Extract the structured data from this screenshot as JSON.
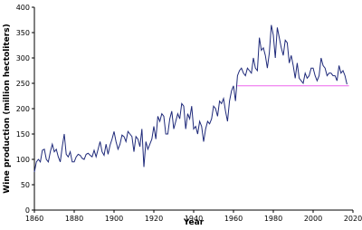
{
  "chart_data": {
    "type": "line",
    "xlabel": "Year",
    "ylabel": "Wine production (million hectoliters)",
    "x": [
      1860,
      1861,
      1862,
      1863,
      1864,
      1865,
      1866,
      1867,
      1868,
      1869,
      1870,
      1871,
      1872,
      1873,
      1874,
      1875,
      1876,
      1877,
      1878,
      1879,
      1880,
      1881,
      1882,
      1883,
      1884,
      1885,
      1886,
      1887,
      1888,
      1889,
      1890,
      1891,
      1892,
      1893,
      1894,
      1895,
      1896,
      1897,
      1898,
      1899,
      1900,
      1901,
      1902,
      1903,
      1904,
      1905,
      1906,
      1907,
      1908,
      1909,
      1910,
      1911,
      1912,
      1913,
      1914,
      1915,
      1916,
      1917,
      1918,
      1919,
      1920,
      1921,
      1922,
      1923,
      1924,
      1925,
      1926,
      1927,
      1928,
      1929,
      1930,
      1931,
      1932,
      1933,
      1934,
      1935,
      1936,
      1937,
      1938,
      1939,
      1940,
      1941,
      1942,
      1943,
      1944,
      1945,
      1946,
      1947,
      1948,
      1949,
      1950,
      1951,
      1952,
      1953,
      1954,
      1955,
      1956,
      1957,
      1958,
      1959,
      1960,
      1961,
      1962,
      1963,
      1964,
      1965,
      1966,
      1967,
      1968,
      1969,
      1970,
      1971,
      1972,
      1973,
      1974,
      1975,
      1976,
      1977,
      1978,
      1979,
      1980,
      1981,
      1982,
      1983,
      1984,
      1985,
      1986,
      1987,
      1988,
      1989,
      1990,
      1991,
      1992,
      1993,
      1994,
      1995,
      1996,
      1997,
      1998,
      1999,
      2000,
      2001,
      2002,
      2003,
      2004,
      2005,
      2006,
      2007,
      2008,
      2009,
      2010,
      2011,
      2012,
      2013,
      2014,
      2015,
      2016,
      2017
    ],
    "series": [
      {
        "color": "#1f2a7a",
        "values": [
          75,
          95,
          100,
          95,
          118,
          120,
          100,
          95,
          115,
          130,
          115,
          120,
          105,
          95,
          125,
          150,
          110,
          105,
          115,
          95,
          95,
          105,
          110,
          108,
          102,
          100,
          110,
          112,
          108,
          105,
          118,
          105,
          120,
          135,
          115,
          108,
          130,
          110,
          128,
          140,
          155,
          135,
          120,
          130,
          148,
          145,
          135,
          155,
          150,
          145,
          115,
          145,
          140,
          125,
          160,
          85,
          135,
          120,
          130,
          140,
          165,
          140,
          185,
          175,
          190,
          185,
          150,
          150,
          180,
          195,
          160,
          175,
          190,
          180,
          210,
          205,
          160,
          190,
          180,
          205,
          160,
          165,
          150,
          175,
          165,
          135,
          160,
          175,
          170,
          180,
          205,
          200,
          185,
          215,
          210,
          220,
          195,
          175,
          215,
          235,
          245,
          215,
          265,
          275,
          280,
          270,
          265,
          280,
          275,
          270,
          300,
          280,
          275,
          340,
          315,
          320,
          305,
          280,
          310,
          365,
          345,
          300,
          360,
          340,
          320,
          305,
          335,
          330,
          290,
          305,
          285,
          260,
          290,
          260,
          255,
          250,
          270,
          260,
          265,
          280,
          280,
          265,
          255,
          265,
          300,
          285,
          280,
          265,
          270,
          270,
          265,
          265,
          255,
          285,
          270,
          275,
          265,
          248
        ]
      },
      {
        "color": "#ee66ee",
        "x": [
          1962,
          2018
        ],
        "values": [
          245,
          245
        ]
      }
    ],
    "xlim": [
      1860,
      2020
    ],
    "xticks": [
      1860,
      1880,
      1900,
      1920,
      1940,
      1960,
      1980,
      2000,
      2020
    ],
    "ylim": [
      0,
      400
    ],
    "yticks": [
      0,
      50,
      100,
      150,
      200,
      250,
      300,
      350,
      400
    ]
  }
}
